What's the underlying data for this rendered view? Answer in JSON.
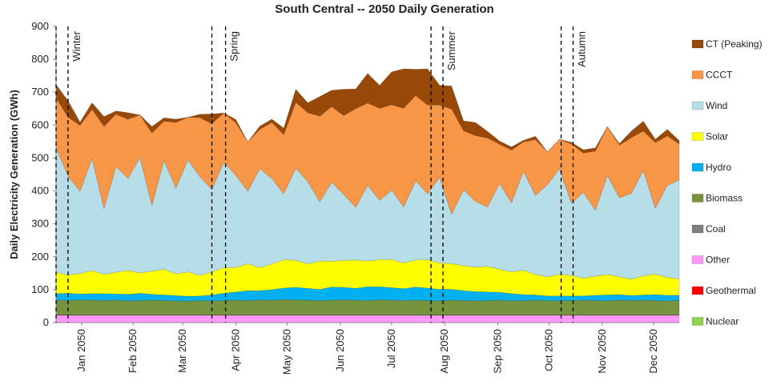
{
  "chart_data": {
    "type": "stacked_area",
    "title": "South Central -- 2050 Daily Generation",
    "y_label": "Daily Electricity Generation (GWh)",
    "ylim": [
      0,
      900
    ],
    "yticks": [
      0,
      100,
      200,
      300,
      400,
      500,
      600,
      700,
      800,
      900
    ],
    "xlim": [
      1,
      365
    ],
    "xticks": [
      {
        "value": 16,
        "label": "Jan 2050"
      },
      {
        "value": 46,
        "label": "Feb 2050"
      },
      {
        "value": 75,
        "label": "Mar 2050"
      },
      {
        "value": 106,
        "label": "Apr 2050"
      },
      {
        "value": 136,
        "label": "May 2050"
      },
      {
        "value": 167,
        "label": "Jun 2050"
      },
      {
        "value": 197,
        "label": "Jul 2050"
      },
      {
        "value": 228,
        "label": "Aug 2050"
      },
      {
        "value": 259,
        "label": "Sep 2050"
      },
      {
        "value": 289,
        "label": "Oct 2050"
      },
      {
        "value": 320,
        "label": "Nov 2050"
      },
      {
        "value": 350,
        "label": "Dec 2050"
      }
    ],
    "x": [
      1,
      8,
      15,
      22,
      29,
      36,
      43,
      50,
      57,
      64,
      71,
      78,
      85,
      92,
      99,
      106,
      113,
      120,
      127,
      134,
      141,
      148,
      155,
      162,
      169,
      176,
      183,
      190,
      197,
      204,
      211,
      218,
      225,
      232,
      239,
      246,
      253,
      260,
      267,
      274,
      281,
      288,
      295,
      302,
      309,
      316,
      323,
      330,
      337,
      344,
      351,
      358,
      365
    ],
    "seasons": [
      {
        "label": "Winter",
        "x": [
          1,
          8
        ]
      },
      {
        "label": "Spring",
        "x": [
          92,
          100
        ]
      },
      {
        "label": "Summer",
        "x": [
          220,
          227
        ]
      },
      {
        "label": "Autumn",
        "x": [
          296,
          303
        ]
      }
    ],
    "series": [
      {
        "name": "Nuclear",
        "color": "#92d050",
        "values": [
          0,
          0,
          0,
          0,
          0,
          0,
          0,
          0,
          0,
          0,
          0,
          0,
          0,
          0,
          0,
          0,
          0,
          0,
          0,
          0,
          0,
          0,
          0,
          0,
          0,
          0,
          0,
          0,
          0,
          0,
          0,
          0,
          0,
          0,
          0,
          0,
          0,
          0,
          0,
          0,
          0,
          0,
          0,
          0,
          0,
          0,
          0,
          0,
          0,
          0,
          0,
          0,
          0
        ]
      },
      {
        "name": "Geothermal",
        "color": "#ff0000",
        "values": [
          0,
          0,
          0,
          0,
          0,
          0,
          0,
          0,
          0,
          0,
          0,
          0,
          0,
          0,
          0,
          0,
          0,
          0,
          0,
          0,
          0,
          0,
          0,
          0,
          0,
          0,
          0,
          0,
          0,
          0,
          0,
          0,
          0,
          0,
          0,
          0,
          0,
          0,
          0,
          0,
          0,
          0,
          0,
          0,
          0,
          0,
          0,
          0,
          0,
          0,
          0,
          0,
          0
        ]
      },
      {
        "name": "Other",
        "color": "#ff99ff",
        "values": [
          22,
          22,
          22,
          22,
          22,
          22,
          22,
          22,
          22,
          22,
          22,
          22,
          22,
          22,
          22,
          22,
          22,
          22,
          22,
          22,
          22,
          22,
          22,
          22,
          22,
          22,
          22,
          22,
          22,
          22,
          22,
          22,
          22,
          22,
          22,
          22,
          22,
          22,
          22,
          22,
          22,
          22,
          22,
          22,
          22,
          22,
          22,
          22,
          22,
          22,
          22,
          22,
          22
        ]
      },
      {
        "name": "Coal",
        "color": "#808080",
        "values": [
          1,
          1,
          1,
          1,
          1,
          1,
          1,
          1,
          1,
          1,
          1,
          1,
          1,
          1,
          1,
          1,
          1,
          1,
          1,
          1,
          1,
          1,
          1,
          1,
          1,
          1,
          1,
          1,
          1,
          1,
          1,
          1,
          1,
          1,
          1,
          1,
          1,
          1,
          1,
          1,
          1,
          1,
          1,
          1,
          1,
          1,
          1,
          1,
          1,
          1,
          1,
          1,
          1
        ]
      },
      {
        "name": "Biomass",
        "color": "#77933c",
        "values": [
          45,
          44,
          46,
          45,
          44,
          45,
          43,
          44,
          45,
          44,
          43,
          42,
          44,
          43,
          44,
          45,
          44,
          46,
          45,
          47,
          46,
          45,
          44,
          45,
          46,
          45,
          44,
          46,
          45,
          44,
          45,
          44,
          43,
          45,
          44,
          43,
          44,
          45,
          43,
          44,
          45,
          44,
          43,
          44,
          45,
          44,
          43,
          45,
          44,
          45,
          44,
          43,
          44
        ]
      },
      {
        "name": "Hydro",
        "color": "#00b0f0",
        "values": [
          20,
          22,
          18,
          20,
          21,
          19,
          20,
          22,
          18,
          17,
          16,
          15,
          14,
          18,
          22,
          25,
          30,
          28,
          32,
          35,
          38,
          36,
          34,
          40,
          38,
          36,
          42,
          40,
          38,
          36,
          40,
          38,
          35,
          33,
          30,
          28,
          26,
          24,
          22,
          18,
          16,
          14,
          15,
          14,
          13,
          16,
          18,
          17,
          15,
          16,
          18,
          17,
          16
        ]
      },
      {
        "name": "Solar",
        "color": "#ffff00",
        "values": [
          65,
          55,
          62,
          70,
          58,
          66,
          72,
          62,
          70,
          78,
          66,
          74,
          62,
          70,
          78,
          74,
          82,
          70,
          78,
          86,
          82,
          74,
          86,
          78,
          82,
          86,
          78,
          82,
          86,
          78,
          82,
          86,
          80,
          78,
          76,
          74,
          78,
          70,
          66,
          74,
          62,
          58,
          66,
          62,
          54,
          58,
          62,
          54,
          50,
          58,
          62,
          54,
          50
        ]
      },
      {
        "name": "Wind",
        "color": "#b7dde8",
        "values": [
          380,
          300,
          250,
          340,
          200,
          320,
          280,
          350,
          200,
          330,
          260,
          340,
          300,
          250,
          320,
          280,
          220,
          300,
          260,
          200,
          280,
          250,
          180,
          240,
          200,
          160,
          230,
          180,
          210,
          170,
          240,
          200,
          260,
          150,
          230,
          200,
          180,
          260,
          210,
          300,
          240,
          280,
          320,
          220,
          260,
          200,
          300,
          240,
          260,
          320,
          200,
          280,
          300
        ]
      },
      {
        "name": "CCCT",
        "color": "#f79646",
        "values": [
          150,
          180,
          200,
          150,
          250,
          160,
          180,
          130,
          220,
          120,
          200,
          130,
          180,
          200,
          150,
          160,
          150,
          120,
          170,
          180,
          200,
          210,
          260,
          230,
          240,
          300,
          250,
          280,
          260,
          300,
          260,
          270,
          220,
          320,
          180,
          200,
          210,
          120,
          160,
          90,
          170,
          100,
          90,
          180,
          120,
          180,
          150,
          160,
          170,
          120,
          200,
          150,
          110
        ]
      },
      {
        "name": "CT (Peaking)",
        "color": "#984807",
        "values": [
          40,
          50,
          10,
          20,
          30,
          10,
          20,
          0,
          20,
          10,
          10,
          0,
          10,
          30,
          0,
          10,
          0,
          10,
          10,
          20,
          40,
          30,
          60,
          50,
          80,
          60,
          90,
          70,
          100,
          120,
          80,
          110,
          60,
          70,
          30,
          40,
          20,
          10,
          10,
          5,
          10,
          0,
          0,
          5,
          10,
          10,
          0,
          5,
          20,
          30,
          10,
          20,
          10
        ]
      }
    ]
  }
}
